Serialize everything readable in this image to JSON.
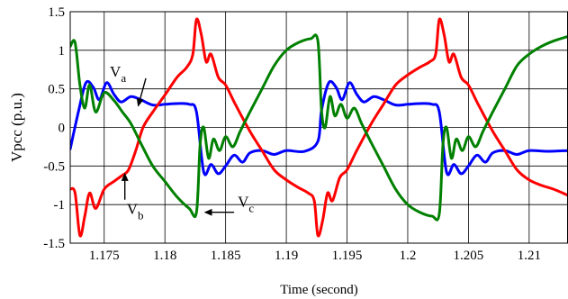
{
  "chart_data": {
    "type": "line",
    "title": "",
    "xlabel": "Time (second)",
    "ylabel": "Vpcc (p.u.)",
    "xlim": [
      1.1722,
      1.2132
    ],
    "ylim": [
      -1.5,
      1.5
    ],
    "x_ticks": [
      1.175,
      1.18,
      1.185,
      1.19,
      1.195,
      1.2,
      1.205,
      1.21
    ],
    "x_tick_labels": [
      "1.175",
      "1.18",
      "1.185",
      "1.19",
      "1.195",
      "1.2",
      "1.205",
      "1.21"
    ],
    "y_ticks": [
      -1.5,
      -1,
      -0.5,
      0,
      0.5,
      1,
      1.5
    ],
    "y_tick_labels": [
      "-1.5",
      "-1",
      "-0.5",
      "0",
      "0.5",
      "1",
      "1.5"
    ],
    "grid": true,
    "legend": "none",
    "series": [
      {
        "name": "Va",
        "color": "#0000ff",
        "points": [
          [
            1.1722,
            -0.28
          ],
          [
            1.1729,
            0.22
          ],
          [
            1.1735,
            0.58
          ],
          [
            1.1741,
            0.52
          ],
          [
            1.1746,
            0.36
          ],
          [
            1.1752,
            0.58
          ],
          [
            1.1758,
            0.43
          ],
          [
            1.1764,
            0.33
          ],
          [
            1.1772,
            0.4
          ],
          [
            1.178,
            0.36
          ],
          [
            1.179,
            0.29
          ],
          [
            1.18,
            0.3
          ],
          [
            1.181,
            0.31
          ],
          [
            1.182,
            0.3
          ],
          [
            1.1826,
            0.2
          ],
          [
            1.1832,
            -0.58
          ],
          [
            1.1838,
            -0.48
          ],
          [
            1.1844,
            -0.6
          ],
          [
            1.185,
            -0.5
          ],
          [
            1.1857,
            -0.36
          ],
          [
            1.1864,
            -0.45
          ],
          [
            1.187,
            -0.33
          ],
          [
            1.188,
            -0.3
          ],
          [
            1.189,
            -0.35
          ],
          [
            1.19,
            -0.3
          ],
          [
            1.1915,
            -0.31
          ],
          [
            1.1926,
            -0.18
          ],
          [
            1.1929,
            0.22
          ],
          [
            1.1935,
            0.58
          ],
          [
            1.1941,
            0.52
          ],
          [
            1.1946,
            0.36
          ],
          [
            1.1952,
            0.58
          ],
          [
            1.1958,
            0.43
          ],
          [
            1.1964,
            0.33
          ],
          [
            1.1972,
            0.4
          ],
          [
            1.198,
            0.36
          ],
          [
            1.199,
            0.29
          ],
          [
            1.2,
            0.3
          ],
          [
            1.201,
            0.31
          ],
          [
            1.202,
            0.3
          ],
          [
            1.2026,
            0.2
          ],
          [
            1.2032,
            -0.58
          ],
          [
            1.2038,
            -0.48
          ],
          [
            1.2044,
            -0.6
          ],
          [
            1.205,
            -0.5
          ],
          [
            1.2057,
            -0.36
          ],
          [
            1.2064,
            -0.45
          ],
          [
            1.207,
            -0.33
          ],
          [
            1.208,
            -0.3
          ],
          [
            1.209,
            -0.35
          ],
          [
            1.21,
            -0.3
          ],
          [
            1.2115,
            -0.31
          ],
          [
            1.2132,
            -0.3
          ]
        ]
      },
      {
        "name": "Vb",
        "color": "#ff0000",
        "points": [
          [
            1.1722,
            -0.8
          ],
          [
            1.1726,
            -0.85
          ],
          [
            1.173,
            -1.4
          ],
          [
            1.1734,
            -1.15
          ],
          [
            1.1738,
            -0.85
          ],
          [
            1.1743,
            -1.05
          ],
          [
            1.175,
            -0.8
          ],
          [
            1.1758,
            -0.7
          ],
          [
            1.1765,
            -0.62
          ],
          [
            1.177,
            -0.55
          ],
          [
            1.1776,
            -0.3
          ],
          [
            1.1782,
            0.0
          ],
          [
            1.179,
            0.2
          ],
          [
            1.18,
            0.42
          ],
          [
            1.181,
            0.65
          ],
          [
            1.1818,
            0.78
          ],
          [
            1.1823,
            0.95
          ],
          [
            1.1826,
            1.4
          ],
          [
            1.183,
            1.2
          ],
          [
            1.1834,
            0.85
          ],
          [
            1.1838,
            0.95
          ],
          [
            1.1844,
            0.65
          ],
          [
            1.185,
            0.55
          ],
          [
            1.1858,
            0.3
          ],
          [
            1.187,
            -0.05
          ],
          [
            1.188,
            -0.3
          ],
          [
            1.189,
            -0.55
          ],
          [
            1.19,
            -0.68
          ],
          [
            1.191,
            -0.78
          ],
          [
            1.1918,
            -0.85
          ],
          [
            1.1923,
            -0.95
          ],
          [
            1.1926,
            -1.4
          ],
          [
            1.193,
            -1.2
          ],
          [
            1.1934,
            -0.85
          ],
          [
            1.1938,
            -0.95
          ],
          [
            1.1944,
            -0.65
          ],
          [
            1.195,
            -0.55
          ],
          [
            1.1958,
            -0.3
          ],
          [
            1.197,
            0.05
          ],
          [
            1.198,
            0.3
          ],
          [
            1.199,
            0.55
          ],
          [
            1.2,
            0.68
          ],
          [
            1.201,
            0.78
          ],
          [
            1.2018,
            0.85
          ],
          [
            1.2023,
            0.95
          ],
          [
            1.2026,
            1.4
          ],
          [
            1.203,
            1.2
          ],
          [
            1.2034,
            0.85
          ],
          [
            1.2038,
            0.95
          ],
          [
            1.2044,
            0.65
          ],
          [
            1.205,
            0.55
          ],
          [
            1.2058,
            0.3
          ],
          [
            1.207,
            -0.05
          ],
          [
            1.208,
            -0.3
          ],
          [
            1.209,
            -0.55
          ],
          [
            1.21,
            -0.68
          ],
          [
            1.211,
            -0.75
          ],
          [
            1.212,
            -0.8
          ],
          [
            1.2132,
            -0.88
          ]
        ]
      },
      {
        "name": "Vc",
        "color": "#008000",
        "points": [
          [
            1.1722,
            1.05
          ],
          [
            1.1726,
            1.1
          ],
          [
            1.173,
            0.55
          ],
          [
            1.1734,
            0.25
          ],
          [
            1.1738,
            0.55
          ],
          [
            1.1743,
            0.2
          ],
          [
            1.175,
            0.45
          ],
          [
            1.1758,
            0.35
          ],
          [
            1.1765,
            0.2
          ],
          [
            1.1772,
            0.05
          ],
          [
            1.178,
            -0.2
          ],
          [
            1.179,
            -0.5
          ],
          [
            1.18,
            -0.7
          ],
          [
            1.181,
            -0.9
          ],
          [
            1.182,
            -1.05
          ],
          [
            1.1826,
            -1.1
          ],
          [
            1.1829,
            -0.22
          ],
          [
            1.1832,
            0.0
          ],
          [
            1.1836,
            -0.4
          ],
          [
            1.184,
            -0.15
          ],
          [
            1.1845,
            -0.3
          ],
          [
            1.185,
            -0.12
          ],
          [
            1.1856,
            -0.25
          ],
          [
            1.1862,
            -0.05
          ],
          [
            1.187,
            0.2
          ],
          [
            1.188,
            0.5
          ],
          [
            1.189,
            0.8
          ],
          [
            1.19,
            1.0
          ],
          [
            1.191,
            1.1
          ],
          [
            1.192,
            1.15
          ],
          [
            1.1926,
            1.12
          ],
          [
            1.1929,
            0.22
          ],
          [
            1.1932,
            0.0
          ],
          [
            1.1936,
            0.4
          ],
          [
            1.194,
            0.15
          ],
          [
            1.1945,
            0.3
          ],
          [
            1.195,
            0.12
          ],
          [
            1.1956,
            0.25
          ],
          [
            1.1962,
            0.05
          ],
          [
            1.197,
            -0.2
          ],
          [
            1.198,
            -0.5
          ],
          [
            1.199,
            -0.8
          ],
          [
            1.2,
            -1.0
          ],
          [
            1.201,
            -1.1
          ],
          [
            1.202,
            -1.15
          ],
          [
            1.2026,
            -1.12
          ],
          [
            1.2029,
            -0.22
          ],
          [
            1.2032,
            0.0
          ],
          [
            1.2036,
            -0.4
          ],
          [
            1.204,
            -0.15
          ],
          [
            1.2045,
            -0.3
          ],
          [
            1.205,
            -0.12
          ],
          [
            1.2056,
            -0.25
          ],
          [
            1.2062,
            -0.05
          ],
          [
            1.207,
            0.2
          ],
          [
            1.208,
            0.5
          ],
          [
            1.209,
            0.8
          ],
          [
            1.21,
            0.95
          ],
          [
            1.211,
            1.05
          ],
          [
            1.212,
            1.12
          ],
          [
            1.2132,
            1.18
          ]
        ]
      }
    ],
    "annotations": [
      {
        "label": "V",
        "subscript": "a",
        "xy": [
          1.1778,
          0.28
        ],
        "text_xy": [
          1.1768,
          0.66
        ]
      },
      {
        "label": "V",
        "subscript": "b",
        "xy": [
          1.1767,
          -0.6
        ],
        "text_xy": [
          1.177,
          -1.1
        ]
      },
      {
        "label": "V",
        "subscript": "c",
        "xy": [
          1.1833,
          -1.1
        ],
        "text_xy": [
          1.186,
          -1.1
        ]
      }
    ]
  }
}
